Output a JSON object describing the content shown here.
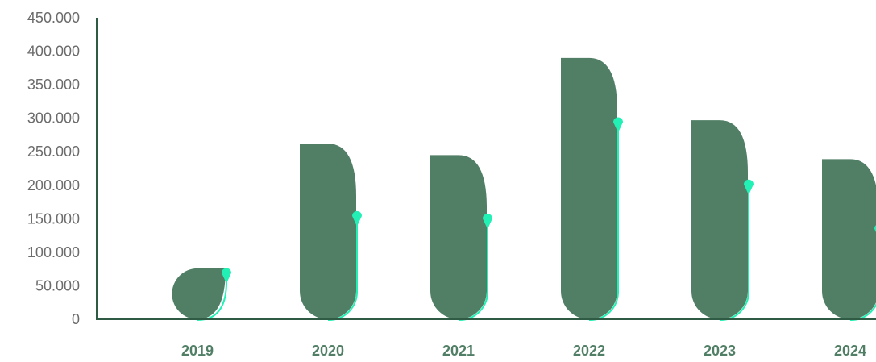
{
  "chart_data": {
    "type": "bar",
    "categories": [
      "2019",
      "2020",
      "2021",
      "2022",
      "2023",
      "2024"
    ],
    "values": [
      76000,
      262000,
      245000,
      390000,
      297000,
      239000
    ],
    "marker_values": [
      68000,
      153000,
      149000,
      293000,
      200000,
      134000
    ],
    "ylim": [
      0,
      450000
    ],
    "yticks": [
      0,
      50000,
      100000,
      150000,
      200000,
      250000,
      300000,
      350000,
      400000,
      450000
    ],
    "ytick_labels": [
      "0",
      "50.000",
      "100.000",
      "150.000",
      "200.000",
      "250.000",
      "300.000",
      "350.000",
      "400.000",
      "450.000"
    ],
    "title": "",
    "xlabel": "",
    "ylabel": "",
    "grid": false,
    "legend": false,
    "colors": {
      "bar": "#517f66",
      "marker": "#22f0b4",
      "axis": "#2f5a43",
      "tick_label": "#6b6b6b",
      "category_label": "#517f66"
    }
  }
}
